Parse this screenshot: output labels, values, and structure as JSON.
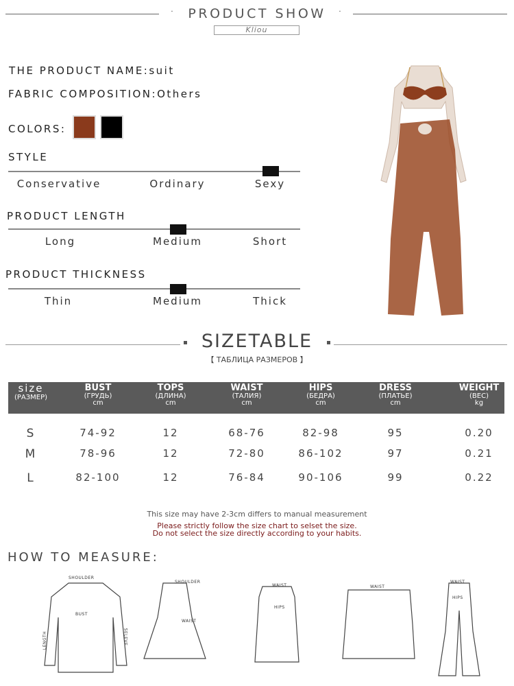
{
  "header": {
    "title": "PRODUCT SHOW",
    "brand": "Kliou"
  },
  "product": {
    "name_label": "THE PRODUCT NAME:",
    "name": "suit",
    "fabric_label": "FABRIC COMPOSITION:",
    "fabric": "Others",
    "colors_label": "COLORS:",
    "colors": [
      "#8a3a1c",
      "#000000"
    ]
  },
  "style": {
    "label": "STYLE",
    "options": [
      "Conservative",
      "Ordinary",
      "Sexy"
    ],
    "selected": "Sexy"
  },
  "length": {
    "label": "PRODUCT LENGTH",
    "options": [
      "Long",
      "Medium",
      "Short"
    ],
    "selected": "Medium"
  },
  "thickness": {
    "label": "PRODUCT THICKNESS",
    "options": [
      "Thin",
      "Medium",
      "Thick"
    ],
    "selected": "Medium"
  },
  "sizetable": {
    "title": "SIZETABLE",
    "subtitle": "【 ТАБЛИЦА РАЗМЕРОВ 】",
    "columns": [
      {
        "name": "size",
        "ru": "(РАЗМЕР)",
        "unit": ""
      },
      {
        "name": "BUST",
        "ru": "(ГРУДЬ)",
        "unit": "cm"
      },
      {
        "name": "TOPS",
        "ru": "(ДЛИНА)",
        "unit": "cm"
      },
      {
        "name": "WAIST",
        "ru": "(ТАЛИЯ)",
        "unit": "cm"
      },
      {
        "name": "HIPS",
        "ru": "(БЕДРА)",
        "unit": "cm"
      },
      {
        "name": "DRESS",
        "ru": "(ПЛАТЬЕ)",
        "unit": "cm"
      },
      {
        "name": "WEIGHT",
        "ru": "(ВЕС)",
        "unit": "kg"
      }
    ],
    "rows": [
      [
        "S",
        "74-92",
        "12",
        "68-76",
        "82-98",
        "95",
        "0.20"
      ],
      [
        "M",
        "78-96",
        "12",
        "72-80",
        "86-102",
        "97",
        "0.21"
      ],
      [
        "L",
        "82-100",
        "12",
        "76-84",
        "90-106",
        "99",
        "0.22"
      ]
    ]
  },
  "notes": {
    "line1": "This size may have 2-3cm differs to manual measurement",
    "line2": "Please strictly follow the size chart to selset the size.",
    "line3": "Do not select the size directly according to your habits."
  },
  "measure": {
    "title": "HOW TO MEASURE:",
    "labels": {
      "shoulder": "SHOULDER",
      "bust": "BUST",
      "length": "LENGTH",
      "sleeve": "SELEVE",
      "waist": "WAIST",
      "hips": "HIPS"
    }
  }
}
